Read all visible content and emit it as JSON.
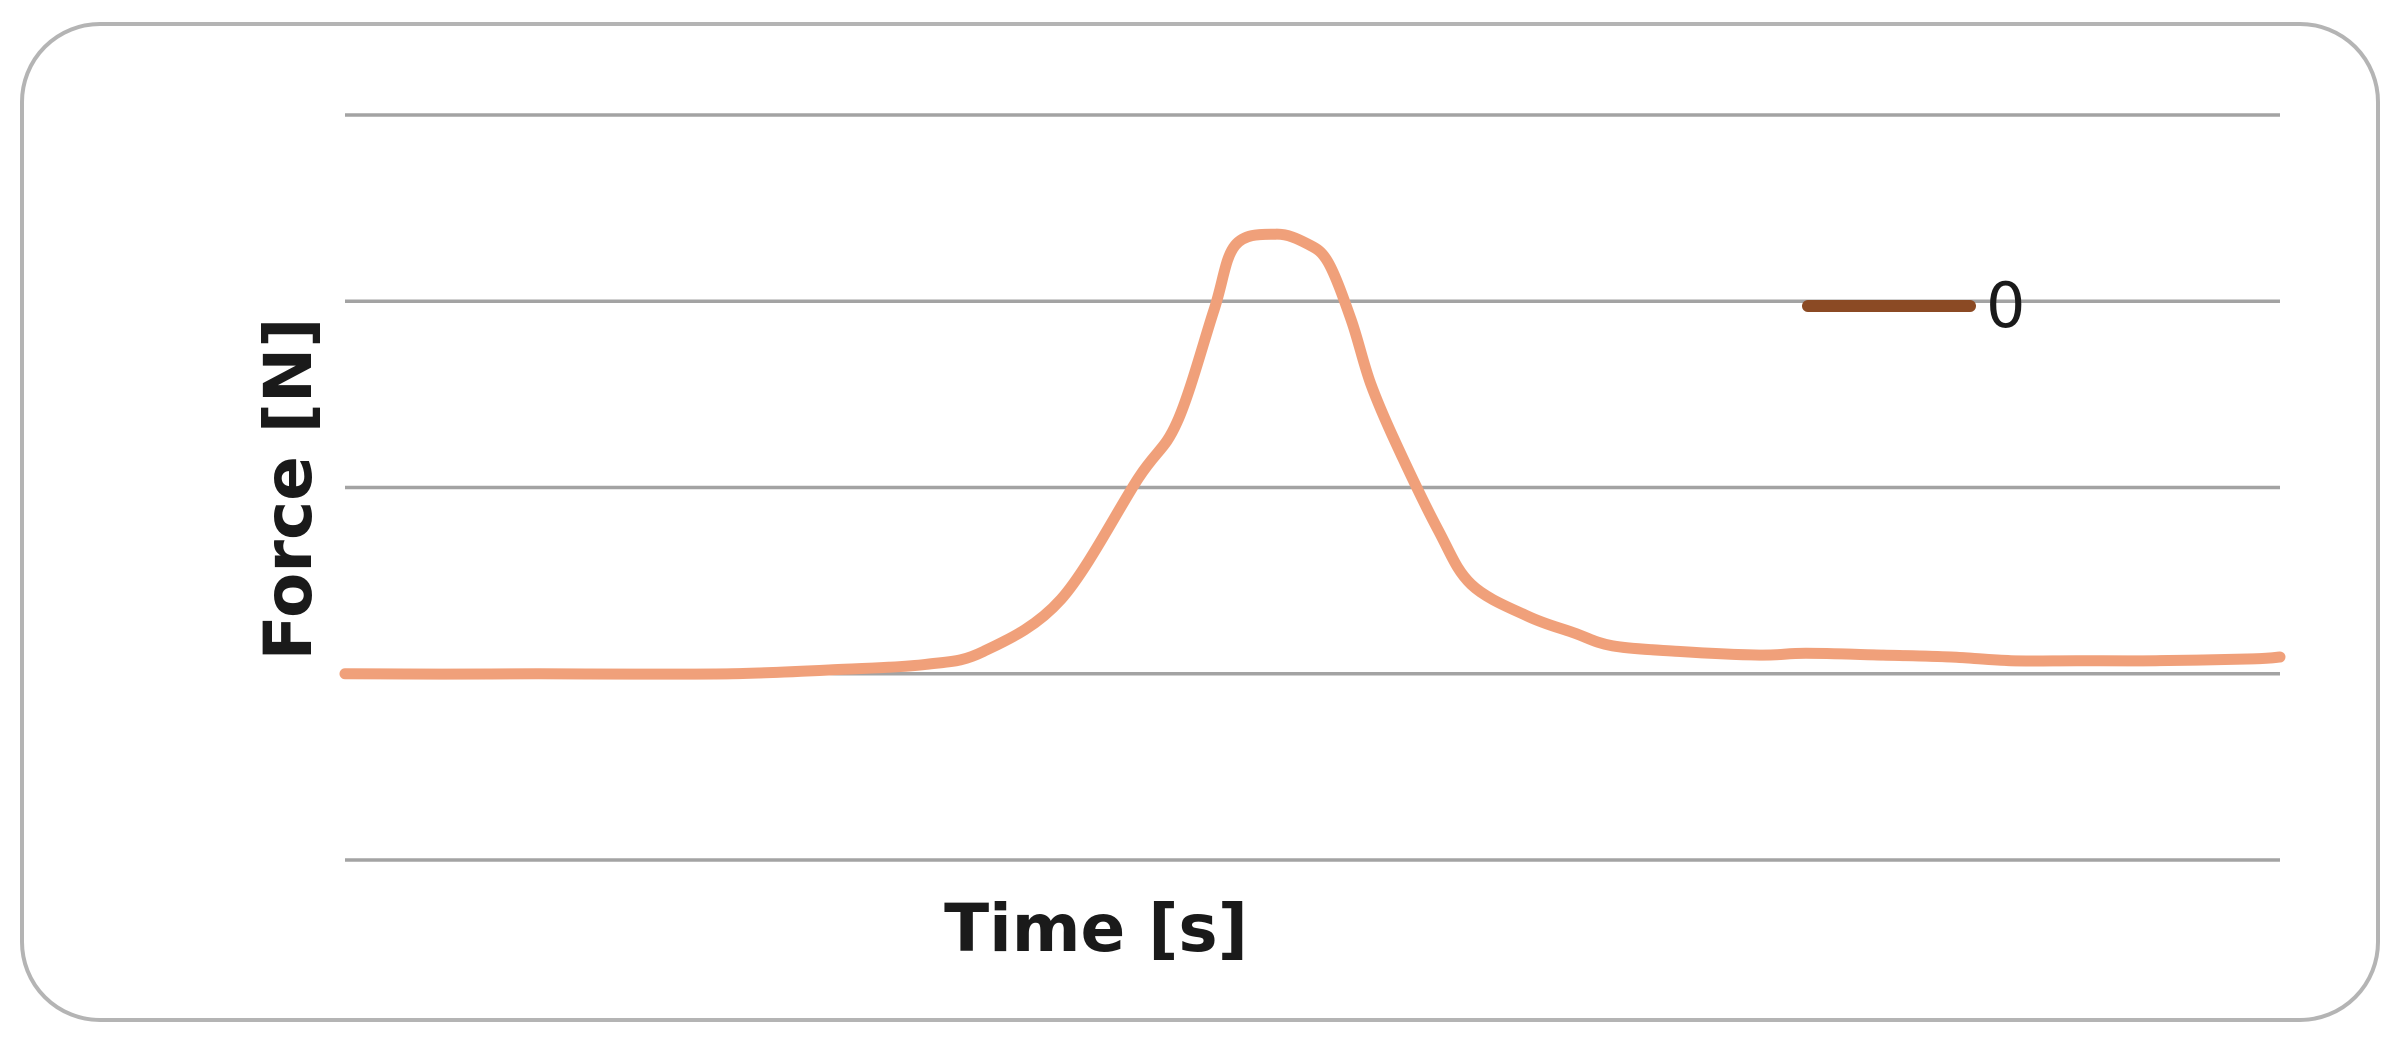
{
  "chart_data": {
    "type": "line",
    "title": "",
    "xlabel": "Time [s]",
    "ylabel": "Force [N]",
    "grid": true,
    "legend_position": "top-right",
    "ylim": [
      -1,
      3
    ],
    "xlim": [
      0,
      100
    ],
    "y_gridlines": [
      -1,
      0,
      1,
      2,
      3
    ],
    "x_tick_labels": [],
    "y_tick_labels": [],
    "colors": {
      "frame": "#b4b4b4",
      "gridline": "#a3a3a3",
      "legend_line": "#8b4a24"
    },
    "series": [
      {
        "name": "",
        "color": "#f0a07a",
        "x": [
          0,
          5,
          10,
          15,
          20,
          25,
          30,
          33,
          37,
          41,
          43,
          44.9,
          46,
          48.1,
          49.7,
          50.8,
          52,
          53,
          54.3,
          56.5,
          58.2,
          61.1,
          63.5,
          65.5,
          68.9,
          73.1,
          75.5,
          79.5,
          83,
          86.1,
          89.5,
          93.6,
          98.6,
          100
        ],
        "y": [
          0.0,
          -0.002,
          0.0,
          -0.002,
          0.0,
          0.02,
          0.05,
          0.12,
          0.4,
          1.05,
          1.35,
          1.95,
          2.3,
          2.36,
          2.31,
          2.21,
          1.9,
          1.56,
          1.24,
          0.77,
          0.48,
          0.31,
          0.22,
          0.15,
          0.12,
          0.1,
          0.11,
          0.1,
          0.09,
          0.07,
          0.07,
          0.07,
          0.08,
          0.09
        ]
      },
      {
        "name": "0",
        "legend_only": true,
        "color": "#8b4a24"
      }
    ]
  }
}
